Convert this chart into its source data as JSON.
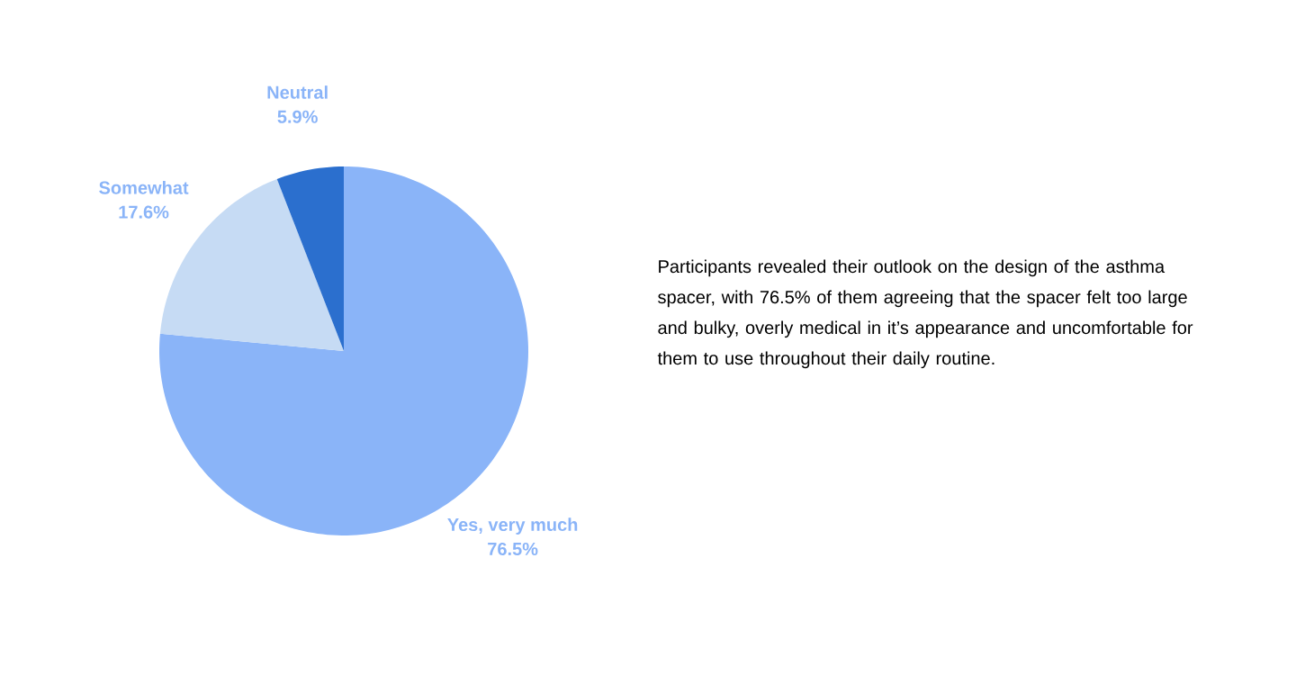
{
  "chart_data": {
    "type": "pie",
    "categories": [
      "Yes, very much",
      "Somewhat",
      "Neutral"
    ],
    "values": [
      76.5,
      17.6,
      5.9
    ],
    "value_labels": [
      "76.5%",
      "17.6%",
      "5.9%"
    ],
    "colors": [
      "#8ab4f8",
      "#c6dbf4",
      "#2b6fce"
    ],
    "annotations": [
      "Participants revealed their outlook on the design of the asthma spacer, with 76.5% of them agreeing that the spacer felt too large and bulky, overly medical in it’s appearance and uncomfortable for them to use throughout their daily routine."
    ]
  }
}
